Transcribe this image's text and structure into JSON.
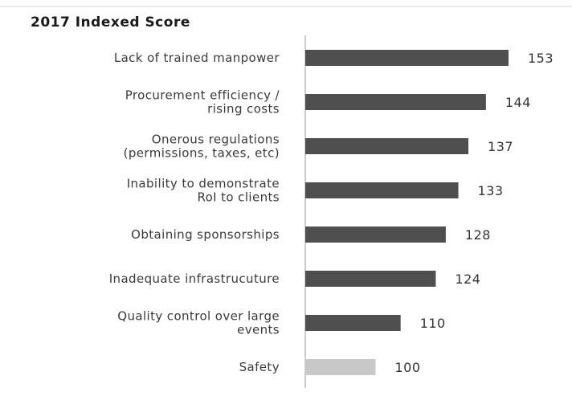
{
  "chart_data": {
    "type": "bar",
    "orientation": "horizontal",
    "title": "2017 Indexed Score",
    "categories": [
      [
        "Lack of trained manpower"
      ],
      [
        "Procurement efficiency /",
        "rising costs"
      ],
      [
        "Onerous regulations",
        "(permissions, taxes, etc)"
      ],
      [
        "Inability to demonstrate",
        "RoI to clients"
      ],
      [
        "Obtaining sponsorships"
      ],
      [
        "Inadequate infrastrucuture"
      ],
      [
        "Quality control over large",
        "events"
      ],
      [
        "Safety"
      ]
    ],
    "values": [
      153,
      144,
      137,
      133,
      128,
      124,
      110,
      100
    ],
    "highlight_color": "#c8c8c8",
    "bar_color": "#4f4f4f",
    "axis_color": "#bcbcbc",
    "xlim": [
      72,
      153
    ],
    "grid": false,
    "legend": "none"
  }
}
